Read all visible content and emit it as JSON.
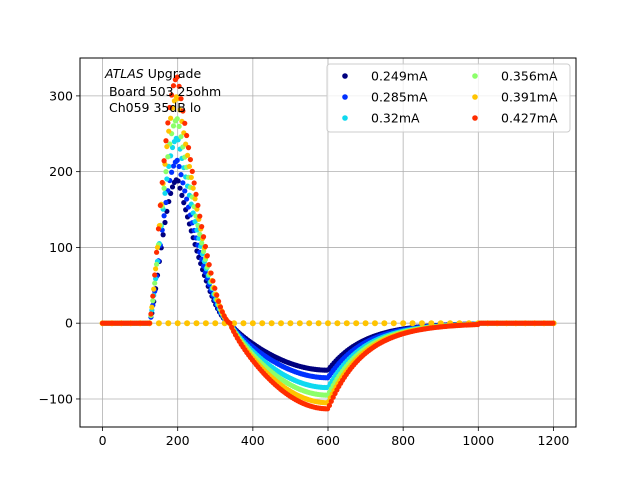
{
  "chart_data": {
    "type": "scatter",
    "title": "",
    "xlabel": "",
    "ylabel": "",
    "xlim": [
      -60,
      1260
    ],
    "ylim": [
      -137,
      350
    ],
    "grid": true,
    "x_ticks": [
      0,
      200,
      400,
      600,
      800,
      1000,
      1200
    ],
    "y_ticks": [
      -100,
      0,
      100,
      200,
      300
    ],
    "y_tick_labels": [
      "−100",
      "0",
      "100",
      "200",
      "300"
    ],
    "annotation": {
      "italic": "ATLAS",
      "line1_rest": " Upgrade",
      "line2": " Board 503 25ohm",
      "line3": " Ch059 35dB lo"
    },
    "legend": {
      "position": "top-right",
      "columns": 2
    },
    "series": [
      {
        "name": "0.249mA",
        "color": "#00007f",
        "peak": 190,
        "trough": -62
      },
      {
        "name": "0.285mA",
        "color": "#0030ff",
        "peak": 215,
        "trough": -72
      },
      {
        "name": "0.32mA",
        "color": "#0fd9ef",
        "peak": 245,
        "trough": -85
      },
      {
        "name": "0.356mA",
        "color": "#8cff6a",
        "peak": 270,
        "trough": -95
      },
      {
        "name": "0.391mA",
        "color": "#ffc400",
        "peak": 300,
        "trough": -105,
        "note": "also flat baseline series near 0"
      },
      {
        "name": "0.427mA",
        "color": "#ff2d00",
        "peak": 325,
        "trough": -113
      }
    ],
    "pulse_shape": {
      "x_rise_start": 125,
      "x_peak": 200,
      "x_zero_cross": 340,
      "x_trough": 600,
      "x_return": 1000,
      "x_end": 1200
    }
  }
}
